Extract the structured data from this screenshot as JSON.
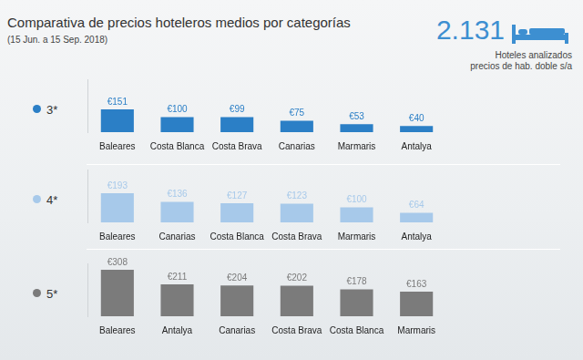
{
  "title": "Comparativa de precios hoteleros medios por categorías",
  "subtitle": "(15 Jun. a 15 Sep. 2018)",
  "annotations": [
    "2.131",
    "Hoteles analizados",
    "precios de hab. doble s/a"
  ],
  "chart_data": [
    {
      "type": "bar",
      "title": "3*",
      "categories": [
        "Baleares",
        "Costa Blanca",
        "Costa Brava",
        "Canarias",
        "Marmaris",
        "Antalya"
      ],
      "values": [
        151,
        100,
        99,
        75,
        53,
        40
      ],
      "value_labels": [
        "€151",
        "€100",
        "€99",
        "€75",
        "€53",
        "€40"
      ],
      "color": "#2b7fc6",
      "ylim": [
        0,
        350
      ],
      "data_labels": true,
      "tick_labels": "x",
      "grid": false
    },
    {
      "type": "bar",
      "title": "4*",
      "categories": [
        "Baleares",
        "Canarias",
        "Costa Blanca",
        "Costa Brava",
        "Marmaris",
        "Antalya"
      ],
      "values": [
        193,
        136,
        127,
        123,
        100,
        64
      ],
      "value_labels": [
        "€193",
        "€136",
        "€127",
        "€123",
        "€100",
        "€64"
      ],
      "color": "#a7c9ea",
      "ylim": [
        0,
        350
      ],
      "data_labels": true,
      "tick_labels": "x",
      "grid": false
    },
    {
      "type": "bar",
      "title": "5*",
      "categories": [
        "Baleares",
        "Antalya",
        "Canarias",
        "Costa Brava",
        "Costa Blanca",
        "Marmaris"
      ],
      "values": [
        308,
        211,
        204,
        202,
        178,
        163
      ],
      "value_labels": [
        "€308",
        "€211",
        "€204",
        "€202",
        "€178",
        "€163"
      ],
      "color": "#7b7b7b",
      "ylim": [
        0,
        350
      ],
      "data_labels": true,
      "tick_labels": "x",
      "grid": false
    }
  ]
}
